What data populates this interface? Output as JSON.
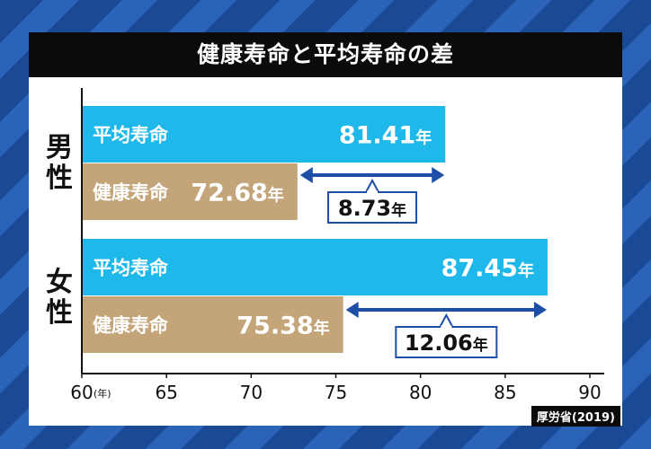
{
  "chart_data": {
    "type": "bar",
    "title": "健康寿命と平均寿命の差",
    "xlim": [
      60,
      90
    ],
    "x_ticks": [
      "60",
      "65",
      "70",
      "75",
      "80",
      "85",
      "90"
    ],
    "x_unit": "(年)",
    "groups": [
      {
        "label": "男性",
        "bars": [
          {
            "label": "平均寿命",
            "value": 81.41,
            "value_label": "81.41",
            "unit": "年",
            "color": "#1fb8ea"
          },
          {
            "label": "健康寿命",
            "value": 72.68,
            "value_label": "72.68",
            "unit": "年",
            "color": "#c4a57a"
          }
        ],
        "difference_label": "8.73",
        "difference_unit": "年"
      },
      {
        "label": "女性",
        "bars": [
          {
            "label": "平均寿命",
            "value": 87.45,
            "value_label": "87.45",
            "unit": "年",
            "color": "#1fb8ea"
          },
          {
            "label": "健康寿命",
            "value": 75.38,
            "value_label": "75.38",
            "unit": "年",
            "color": "#c4a57a"
          }
        ],
        "difference_label": "12.06",
        "difference_unit": "年"
      }
    ],
    "arrow_color": "#1e4fa6"
  },
  "source": "厚労省(2019)"
}
